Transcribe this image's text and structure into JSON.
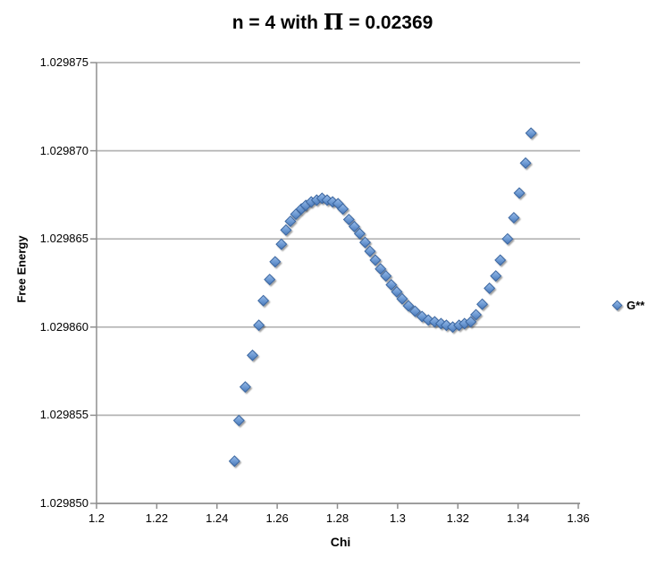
{
  "title": {
    "prefix": "n = 4 with ",
    "pi": "Π",
    "suffix": " = 0.02369"
  },
  "axes": {
    "y_title": "Free Energy",
    "x_title": "Chi",
    "y_ticks": [
      {
        "v": 1.029875,
        "label": "1.029875"
      },
      {
        "v": 1.02987,
        "label": "1.029870"
      },
      {
        "v": 1.029865,
        "label": "1.029865"
      },
      {
        "v": 1.02986,
        "label": "1.029860"
      },
      {
        "v": 1.029855,
        "label": "1.029855"
      },
      {
        "v": 1.02985,
        "label": "1.029850"
      }
    ],
    "x_ticks": [
      {
        "v": 1.2,
        "label": "1.2"
      },
      {
        "v": 1.22,
        "label": "1.22"
      },
      {
        "v": 1.24,
        "label": "1.24"
      },
      {
        "v": 1.26,
        "label": "1.26"
      },
      {
        "v": 1.28,
        "label": "1.28"
      },
      {
        "v": 1.3,
        "label": "1.3"
      },
      {
        "v": 1.32,
        "label": "1.32"
      },
      {
        "v": 1.34,
        "label": "1.34"
      },
      {
        "v": 1.36,
        "label": "1.36"
      }
    ]
  },
  "legend": {
    "label": "G**",
    "marker": "diamond-icon"
  },
  "colors": {
    "marker_fill_light": "#9BBCE8",
    "marker_fill_mid": "#6E9BD4",
    "marker_fill_dark": "#4A78B8",
    "marker_stroke": "#3A66A0",
    "gridline": "#B3B3B3",
    "axis": "#8F8F8F",
    "text": "#000000",
    "background": "#FFFFFF"
  },
  "chart_data": {
    "type": "scatter",
    "title": "n = 4 with Π = 0.02369",
    "xlabel": "Chi",
    "ylabel": "Free Energy",
    "xlim": [
      1.2,
      1.3614
    ],
    "ylim": [
      1.02985,
      1.029875
    ],
    "x_tick_step": 0.02,
    "y_tick_step": 5e-06,
    "grid": "horizontal",
    "legend_position": "right-middle",
    "features": {
      "local_max": {
        "chi": 1.2749,
        "G": 1.0298673
      },
      "local_min": {
        "chi": 1.3183,
        "G": 1.02986
      }
    },
    "series": [
      {
        "name": "G**",
        "marker": "diamond",
        "color": "#4F81BD",
        "points": [
          [
            1.2458,
            1.0298524
          ],
          [
            1.2473,
            1.0298547
          ],
          [
            1.2494,
            1.0298566
          ],
          [
            1.2518,
            1.0298584
          ],
          [
            1.2539,
            1.0298601
          ],
          [
            1.2554,
            1.0298615
          ],
          [
            1.2575,
            1.0298627
          ],
          [
            1.2593,
            1.0298637
          ],
          [
            1.2614,
            1.0298647
          ],
          [
            1.2629,
            1.0298655
          ],
          [
            1.2644,
            1.029866
          ],
          [
            1.2662,
            1.0298664
          ],
          [
            1.268,
            1.0298667
          ],
          [
            1.2695,
            1.0298669
          ],
          [
            1.2713,
            1.0298671
          ],
          [
            1.2731,
            1.0298672
          ],
          [
            1.2749,
            1.0298673
          ],
          [
            1.2766,
            1.0298672
          ],
          [
            1.2784,
            1.0298671
          ],
          [
            1.2802,
            1.029867
          ],
          [
            1.2818,
            1.0298667
          ],
          [
            1.2838,
            1.0298661
          ],
          [
            1.2856,
            1.0298657
          ],
          [
            1.2874,
            1.0298653
          ],
          [
            1.2892,
            1.0298648
          ],
          [
            1.2908,
            1.0298643
          ],
          [
            1.2926,
            1.0298638
          ],
          [
            1.2943,
            1.0298633
          ],
          [
            1.2961,
            1.0298629
          ],
          [
            1.2979,
            1.0298624
          ],
          [
            1.2997,
            1.029862
          ],
          [
            1.3015,
            1.0298616
          ],
          [
            1.3036,
            1.0298612
          ],
          [
            1.3058,
            1.0298609
          ],
          [
            1.3081,
            1.0298606
          ],
          [
            1.3102,
            1.0298604
          ],
          [
            1.3123,
            1.0298603
          ],
          [
            1.3144,
            1.0298602
          ],
          [
            1.3162,
            1.0298601
          ],
          [
            1.3183,
            1.02986
          ],
          [
            1.3204,
            1.0298601
          ],
          [
            1.3222,
            1.0298602
          ],
          [
            1.3243,
            1.0298603
          ],
          [
            1.326,
            1.0298607
          ],
          [
            1.3281,
            1.0298613
          ],
          [
            1.3305,
            1.0298622
          ],
          [
            1.3326,
            1.0298629
          ],
          [
            1.3341,
            1.0298638
          ],
          [
            1.3365,
            1.029865
          ],
          [
            1.3386,
            1.0298662
          ],
          [
            1.3404,
            1.0298676
          ],
          [
            1.3425,
            1.0298693
          ],
          [
            1.3443,
            1.029871
          ]
        ]
      }
    ]
  }
}
